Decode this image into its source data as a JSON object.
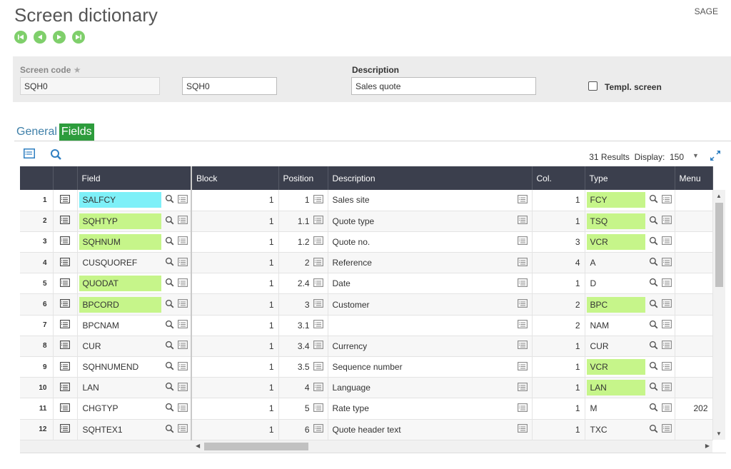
{
  "page": {
    "title": "Screen dictionary",
    "company": "SAGE"
  },
  "nav": {
    "buttons": [
      "first-record",
      "previous-record",
      "next-record",
      "last-record"
    ]
  },
  "header": {
    "screen_code_label": "Screen code",
    "required_mark": "★",
    "screen_code_value": "SQH0",
    "screen_code_value2": "SQH0",
    "description_label": "Description",
    "description_value": "Sales quote",
    "template_label": "Templ. screen"
  },
  "tabs": [
    {
      "label": "General",
      "active": false
    },
    {
      "label": "Fields",
      "active": true
    }
  ],
  "grid_toolbar": {
    "results": "31 Results",
    "display_label": "Display:",
    "display_value": "150"
  },
  "columns": [
    "Field",
    "Block",
    "Position",
    "Description",
    "Col.",
    "Type",
    "Menu"
  ],
  "rows": [
    {
      "n": "1",
      "field": "SALFCY",
      "field_hl": "cyan",
      "block": "1",
      "position": "1",
      "description": "Sales site",
      "col": "1",
      "type": "FCY",
      "type_hl": "green",
      "menu": ""
    },
    {
      "n": "2",
      "field": "SQHTYP",
      "field_hl": "green",
      "block": "1",
      "position": "1.1",
      "description": "Quote type",
      "col": "1",
      "type": "TSQ",
      "type_hl": "green",
      "menu": ""
    },
    {
      "n": "3",
      "field": "SQHNUM",
      "field_hl": "green",
      "block": "1",
      "position": "1.2",
      "description": "Quote no.",
      "col": "3",
      "type": "VCR",
      "type_hl": "green",
      "menu": ""
    },
    {
      "n": "4",
      "field": "CUSQUOREF",
      "field_hl": "",
      "block": "1",
      "position": "2",
      "description": "Reference",
      "col": "4",
      "type": "A",
      "type_hl": "",
      "menu": ""
    },
    {
      "n": "5",
      "field": "QUODAT",
      "field_hl": "green",
      "block": "1",
      "position": "2.4",
      "description": "Date",
      "col": "1",
      "type": "D",
      "type_hl": "",
      "menu": ""
    },
    {
      "n": "6",
      "field": "BPCORD",
      "field_hl": "green",
      "block": "1",
      "position": "3",
      "description": "Customer",
      "col": "2",
      "type": "BPC",
      "type_hl": "green",
      "menu": ""
    },
    {
      "n": "7",
      "field": "BPCNAM",
      "field_hl": "",
      "block": "1",
      "position": "3.1",
      "description": "",
      "col": "2",
      "type": "NAM",
      "type_hl": "",
      "menu": ""
    },
    {
      "n": "8",
      "field": "CUR",
      "field_hl": "",
      "block": "1",
      "position": "3.4",
      "description": "Currency",
      "col": "1",
      "type": "CUR",
      "type_hl": "",
      "menu": ""
    },
    {
      "n": "9",
      "field": "SQHNUMEND",
      "field_hl": "",
      "block": "1",
      "position": "3.5",
      "description": "Sequence number",
      "col": "1",
      "type": "VCR",
      "type_hl": "green",
      "menu": ""
    },
    {
      "n": "10",
      "field": "LAN",
      "field_hl": "",
      "block": "1",
      "position": "4",
      "description": "Language",
      "col": "1",
      "type": "LAN",
      "type_hl": "green",
      "menu": ""
    },
    {
      "n": "11",
      "field": "CHGTYP",
      "field_hl": "",
      "block": "1",
      "position": "5",
      "description": "Rate type",
      "col": "1",
      "type": "M",
      "type_hl": "",
      "menu": "202"
    },
    {
      "n": "12",
      "field": "SQHTEX1",
      "field_hl": "",
      "block": "1",
      "position": "6",
      "description": "Quote header text",
      "col": "1",
      "type": "TXC",
      "type_hl": "",
      "menu": ""
    }
  ],
  "colors": {
    "accent_green": "#2d9c3c",
    "nav_green": "#7fcf6b",
    "highlight_green": "#c6f58a",
    "highlight_cyan": "#7ef0f8",
    "header_bg": "#3b3f4d",
    "link_blue": "#3e7fa8"
  }
}
